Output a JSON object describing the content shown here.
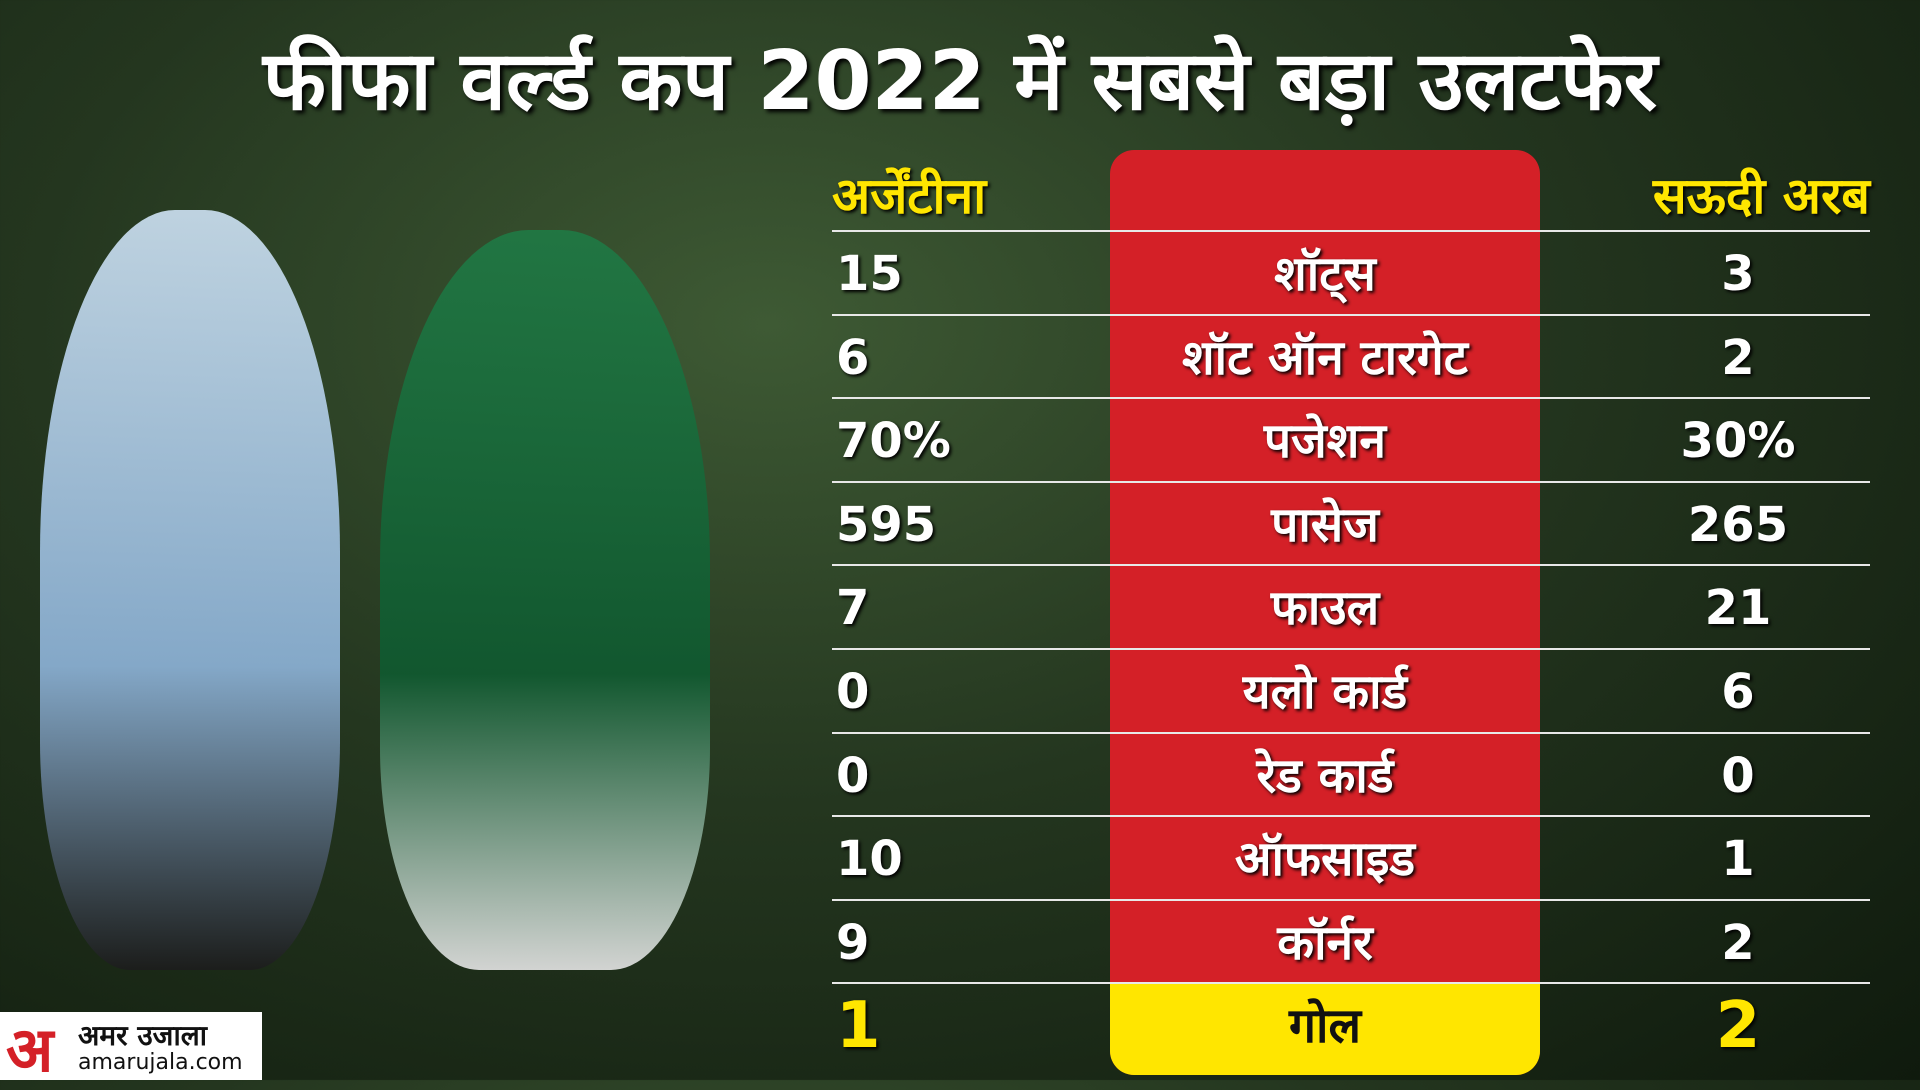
{
  "header": {
    "title": "फीफा वर्ल्ड कप 2022 में सबसे बड़ा उलटफेर"
  },
  "table": {
    "columns": [
      "अर्जेंटीना",
      "सऊदी अरब"
    ],
    "rows": [
      [
        "15",
        "शॉट्स",
        "3"
      ],
      [
        "6",
        "शॉट ऑन टारगेट",
        "2"
      ],
      [
        "70%",
        "पजेशन",
        "30%"
      ],
      [
        "595",
        "पासेज",
        "265"
      ],
      [
        "7",
        "फाउल",
        "21"
      ],
      [
        "0",
        "यलो कार्ड",
        "6"
      ],
      [
        "0",
        "रेड कार्ड",
        "0"
      ],
      [
        "10",
        "ऑफसाइड",
        "1"
      ],
      [
        "9",
        "कॉर्नर",
        "2"
      ],
      [
        "1",
        "गोल",
        "2"
      ]
    ]
  },
  "logo": {
    "mark": "अ",
    "name": "अमर उजाला",
    "site": "amarujala.com"
  }
}
